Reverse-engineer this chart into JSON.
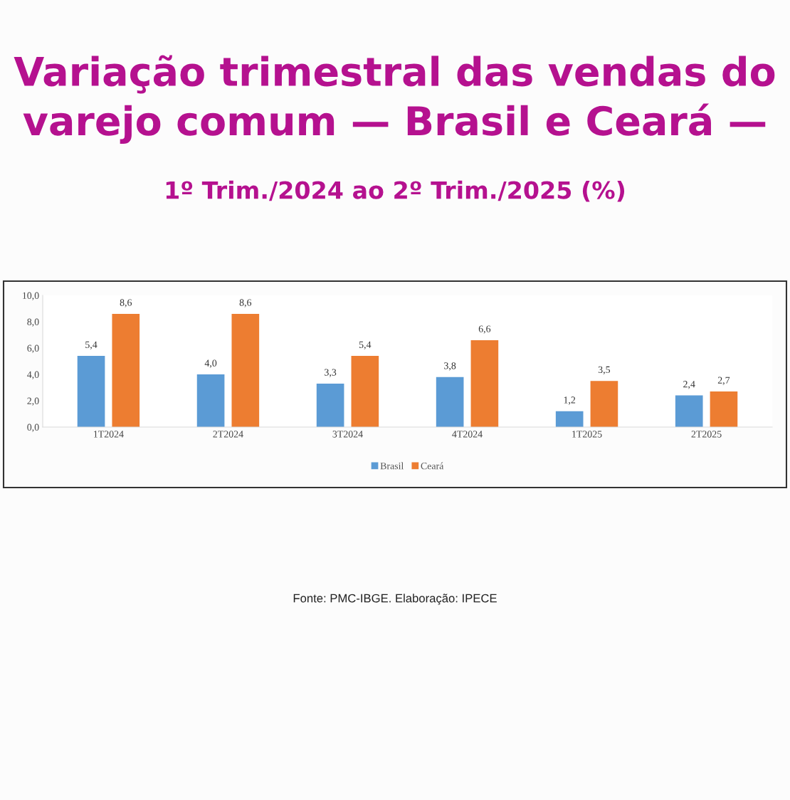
{
  "chart_data": {
    "type": "bar",
    "title": "Variação trimestral das vendas do\nvarejo comum — Brasil e Ceará —",
    "subtitle": "1º Trim./2024 ao 2º Trim./2025 (%)",
    "categories": [
      "1T2024",
      "2T2024",
      "3T2024",
      "4T2024",
      "1T2025",
      "2T2025"
    ],
    "series": [
      {
        "name": "Brasil",
        "color": "#5b9bd5",
        "values": [
          5.4,
          4.0,
          3.3,
          3.8,
          1.2,
          2.4
        ],
        "value_labels": [
          "5,4",
          "4,0",
          "3,3",
          "3,8",
          "1,2",
          "2,4"
        ]
      },
      {
        "name": "Ceará",
        "color": "#ed7d31",
        "values": [
          8.6,
          8.6,
          5.4,
          6.6,
          3.5,
          2.7
        ],
        "value_labels": [
          "8,6",
          "8,6",
          "5,4",
          "6,6",
          "3,5",
          "2,7"
        ]
      }
    ],
    "ylim": [
      0,
      10
    ],
    "yticks": [
      {
        "value": 0,
        "label": "0,0"
      },
      {
        "value": 2,
        "label": "2,0"
      },
      {
        "value": 4,
        "label": "4,0"
      },
      {
        "value": 6,
        "label": "6,0"
      },
      {
        "value": 8,
        "label": "8,0"
      },
      {
        "value": 10,
        "label": "10,0"
      }
    ],
    "grid": false,
    "legend": "bottom",
    "annotations": [
      "Fonte: PMC-IBGE. Elaboração: IPECE"
    ]
  }
}
